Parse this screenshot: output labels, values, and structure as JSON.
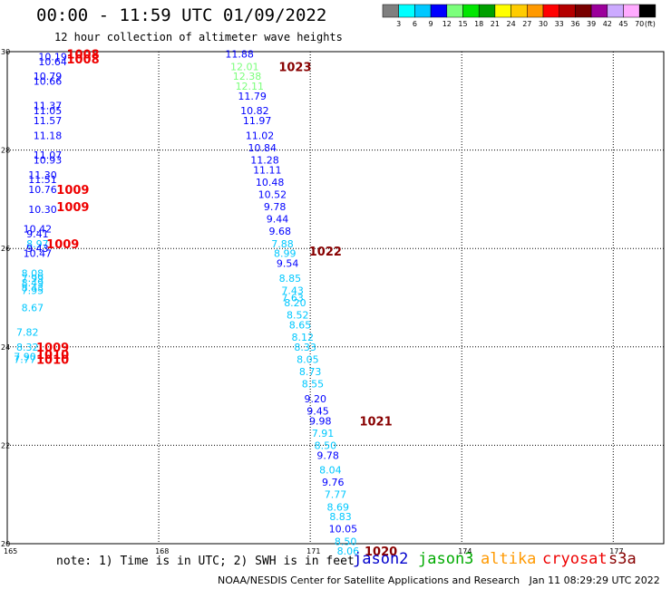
{
  "title": "00:00 - 11:59 UTC 01/09/2022",
  "subtitle": "12 hour collection of altimeter wave heights",
  "footnote": "note: 1) Time is in UTC; 2) SWH is in feet",
  "credit": "NOAA/NESDIS Center for Satellite Applications and Research   Jan 11 08:29:29 UTC 2022",
  "satellites": [
    {
      "name": "jason2",
      "color": "#0000cc"
    },
    {
      "name": "jason3",
      "color": "#00aa00"
    },
    {
      "name": "altika",
      "color": "#ff9900"
    },
    {
      "name": "cryosat",
      "color": "#ee0000"
    },
    {
      "name": "s3a",
      "color": "#880000"
    }
  ],
  "colorbar": {
    "unit": "(ft)",
    "labels": [
      "3",
      "6",
      "9",
      "12",
      "15",
      "18",
      "21",
      "24",
      "27",
      "30",
      "33",
      "36",
      "39",
      "42",
      "45",
      "70"
    ],
    "colors": [
      "#7f7f7f",
      "#00ffff",
      "#00c8ff",
      "#0000ff",
      "#7bff7b",
      "#00e600",
      "#00a000",
      "#ffff00",
      "#ffcc00",
      "#ff9900",
      "#ff0000",
      "#b40000",
      "#780000",
      "#9b009b",
      "#ccaaff",
      "#ffaaff",
      "#000000"
    ]
  },
  "chart_data": {
    "type": "scatter",
    "xlim": [
      165,
      178
    ],
    "ylim": [
      20,
      30
    ],
    "x_ticks": [
      165,
      168,
      171,
      174,
      177
    ],
    "y_ticks": [
      20,
      22,
      24,
      26,
      28,
      30
    ],
    "grid": true,
    "swh_points": [
      {
        "x": 165.9,
        "y": 29.9,
        "v": "10.19",
        "c": "#0000ff"
      },
      {
        "x": 165.9,
        "y": 29.8,
        "v": "10.64",
        "c": "#0000ff"
      },
      {
        "x": 165.8,
        "y": 29.5,
        "v": "10.79",
        "c": "#0000ff"
      },
      {
        "x": 165.8,
        "y": 29.4,
        "v": "10.66",
        "c": "#0000ff"
      },
      {
        "x": 165.8,
        "y": 28.9,
        "v": "11.37",
        "c": "#0000ff"
      },
      {
        "x": 165.8,
        "y": 28.8,
        "v": "11.05",
        "c": "#0000ff"
      },
      {
        "x": 165.8,
        "y": 28.6,
        "v": "11.57",
        "c": "#0000ff"
      },
      {
        "x": 165.8,
        "y": 28.3,
        "v": "11.18",
        "c": "#0000ff"
      },
      {
        "x": 165.8,
        "y": 27.9,
        "v": "11.07",
        "c": "#0000ff"
      },
      {
        "x": 165.8,
        "y": 27.8,
        "v": "10.93",
        "c": "#0000ff"
      },
      {
        "x": 165.7,
        "y": 27.5,
        "v": "11.30",
        "c": "#0000ff"
      },
      {
        "x": 165.7,
        "y": 27.4,
        "v": "11.51",
        "c": "#0000ff"
      },
      {
        "x": 165.7,
        "y": 27.2,
        "v": "10.76",
        "c": "#0000ff"
      },
      {
        "x": 165.7,
        "y": 26.8,
        "v": "10.30",
        "c": "#0000ff"
      },
      {
        "x": 165.6,
        "y": 26.4,
        "v": "10.42",
        "c": "#0000ff"
      },
      {
        "x": 165.6,
        "y": 26.3,
        "v": "9.41",
        "c": "#0000ff"
      },
      {
        "x": 165.6,
        "y": 26.1,
        "v": "8.97",
        "c": "#00c8ff"
      },
      {
        "x": 165.6,
        "y": 26.0,
        "v": "9.43",
        "c": "#0000ff"
      },
      {
        "x": 165.6,
        "y": 25.9,
        "v": "10.47",
        "c": "#0000ff"
      },
      {
        "x": 165.5,
        "y": 25.5,
        "v": "8.08",
        "c": "#00c8ff"
      },
      {
        "x": 165.5,
        "y": 25.4,
        "v": "7.99",
        "c": "#00c8ff"
      },
      {
        "x": 165.5,
        "y": 25.3,
        "v": "8.49",
        "c": "#00c8ff"
      },
      {
        "x": 165.5,
        "y": 25.2,
        "v": "8.43",
        "c": "#00c8ff"
      },
      {
        "x": 165.5,
        "y": 25.15,
        "v": "7.95",
        "c": "#00c8ff"
      },
      {
        "x": 165.5,
        "y": 24.8,
        "v": "8.67",
        "c": "#00c8ff"
      },
      {
        "x": 165.4,
        "y": 24.3,
        "v": "7.82",
        "c": "#00c8ff"
      },
      {
        "x": 165.4,
        "y": 24.0,
        "v": "8.32",
        "c": "#00c8ff"
      },
      {
        "x": 165.35,
        "y": 23.8,
        "v": "7.90",
        "c": "#00c8ff"
      },
      {
        "x": 165.35,
        "y": 23.75,
        "v": "7.77",
        "c": "#00c8ff"
      },
      {
        "x": 169.6,
        "y": 29.95,
        "v": "11.88",
        "c": "#0000ff"
      },
      {
        "x": 169.7,
        "y": 29.7,
        "v": "12.01",
        "c": "#7bff7b"
      },
      {
        "x": 169.75,
        "y": 29.5,
        "v": "12.38",
        "c": "#7bff7b"
      },
      {
        "x": 169.8,
        "y": 29.3,
        "v": "12.11",
        "c": "#7bff7b"
      },
      {
        "x": 169.85,
        "y": 29.1,
        "v": "11.79",
        "c": "#0000ff"
      },
      {
        "x": 169.9,
        "y": 28.8,
        "v": "10.82",
        "c": "#0000ff"
      },
      {
        "x": 169.95,
        "y": 28.6,
        "v": "11.97",
        "c": "#0000ff"
      },
      {
        "x": 170.0,
        "y": 28.3,
        "v": "11.02",
        "c": "#0000ff"
      },
      {
        "x": 170.05,
        "y": 28.05,
        "v": "10.84",
        "c": "#0000ff"
      },
      {
        "x": 170.1,
        "y": 27.8,
        "v": "11.28",
        "c": "#0000ff"
      },
      {
        "x": 170.15,
        "y": 27.6,
        "v": "11.11",
        "c": "#0000ff"
      },
      {
        "x": 170.2,
        "y": 27.35,
        "v": "10.48",
        "c": "#0000ff"
      },
      {
        "x": 170.25,
        "y": 27.1,
        "v": "10.52",
        "c": "#0000ff"
      },
      {
        "x": 170.3,
        "y": 26.85,
        "v": "9.78",
        "c": "#0000ff"
      },
      {
        "x": 170.35,
        "y": 26.6,
        "v": "9.44",
        "c": "#0000ff"
      },
      {
        "x": 170.4,
        "y": 26.35,
        "v": "9.68",
        "c": "#0000ff"
      },
      {
        "x": 170.45,
        "y": 26.1,
        "v": "7.88",
        "c": "#00c8ff"
      },
      {
        "x": 170.5,
        "y": 25.9,
        "v": "8.99",
        "c": "#00c8ff"
      },
      {
        "x": 170.55,
        "y": 25.7,
        "v": "9.54",
        "c": "#0000ff"
      },
      {
        "x": 170.6,
        "y": 25.4,
        "v": "8.85",
        "c": "#00c8ff"
      },
      {
        "x": 170.65,
        "y": 25.15,
        "v": "7.43",
        "c": "#00c8ff"
      },
      {
        "x": 170.65,
        "y": 25.0,
        "v": "7.63",
        "c": "#00c8ff"
      },
      {
        "x": 170.7,
        "y": 24.9,
        "v": "8.20",
        "c": "#00c8ff"
      },
      {
        "x": 170.75,
        "y": 24.65,
        "v": "8.52",
        "c": "#00c8ff"
      },
      {
        "x": 170.8,
        "y": 24.45,
        "v": "8.65",
        "c": "#00c8ff"
      },
      {
        "x": 170.85,
        "y": 24.2,
        "v": "8.12",
        "c": "#00c8ff"
      },
      {
        "x": 170.9,
        "y": 24.0,
        "v": "8.33",
        "c": "#00c8ff"
      },
      {
        "x": 170.95,
        "y": 23.75,
        "v": "8.05",
        "c": "#00c8ff"
      },
      {
        "x": 171.0,
        "y": 23.5,
        "v": "8.73",
        "c": "#00c8ff"
      },
      {
        "x": 171.05,
        "y": 23.25,
        "v": "8.55",
        "c": "#00c8ff"
      },
      {
        "x": 171.1,
        "y": 22.95,
        "v": "9.20",
        "c": "#0000ff"
      },
      {
        "x": 171.15,
        "y": 22.7,
        "v": "9.45",
        "c": "#0000ff"
      },
      {
        "x": 171.2,
        "y": 22.5,
        "v": "9.98",
        "c": "#0000ff"
      },
      {
        "x": 171.25,
        "y": 22.25,
        "v": "7.91",
        "c": "#00c8ff"
      },
      {
        "x": 171.3,
        "y": 22.0,
        "v": "8.50",
        "c": "#00c8ff"
      },
      {
        "x": 171.35,
        "y": 21.8,
        "v": "9.78",
        "c": "#0000ff"
      },
      {
        "x": 171.4,
        "y": 21.5,
        "v": "8.04",
        "c": "#00c8ff"
      },
      {
        "x": 171.45,
        "y": 21.25,
        "v": "9.76",
        "c": "#0000ff"
      },
      {
        "x": 171.5,
        "y": 21.0,
        "v": "7.77",
        "c": "#00c8ff"
      },
      {
        "x": 171.55,
        "y": 20.75,
        "v": "8.69",
        "c": "#00c8ff"
      },
      {
        "x": 171.6,
        "y": 20.55,
        "v": "8.83",
        "c": "#00c8ff"
      },
      {
        "x": 171.65,
        "y": 20.3,
        "v": "10.05",
        "c": "#0000ff"
      },
      {
        "x": 171.7,
        "y": 20.05,
        "v": "8.50",
        "c": "#00c8ff"
      },
      {
        "x": 171.75,
        "y": 19.85,
        "v": "8.06",
        "c": "#00c8ff"
      }
    ],
    "pressure_labels": [
      {
        "x": 166.5,
        "y": 29.95,
        "v": "1008",
        "c": "#ee0000"
      },
      {
        "x": 166.5,
        "y": 29.85,
        "v": "1008",
        "c": "#ee0000"
      },
      {
        "x": 170.7,
        "y": 29.7,
        "v": "1023",
        "c": "#880000"
      },
      {
        "x": 166.3,
        "y": 27.2,
        "v": "1009",
        "c": "#ee0000"
      },
      {
        "x": 166.3,
        "y": 26.85,
        "v": "1009",
        "c": "#ee0000"
      },
      {
        "x": 166.1,
        "y": 26.1,
        "v": "1009",
        "c": "#ee0000"
      },
      {
        "x": 171.3,
        "y": 25.95,
        "v": "1022",
        "c": "#880000"
      },
      {
        "x": 165.9,
        "y": 24.0,
        "v": "1009",
        "c": "#ee0000"
      },
      {
        "x": 165.9,
        "y": 23.85,
        "v": "1010",
        "c": "#ee0000"
      },
      {
        "x": 165.9,
        "y": 23.75,
        "v": "1010",
        "c": "#ee0000"
      },
      {
        "x": 172.3,
        "y": 22.5,
        "v": "1021",
        "c": "#880000"
      },
      {
        "x": 172.4,
        "y": 19.85,
        "v": "1020",
        "c": "#880000"
      }
    ]
  }
}
